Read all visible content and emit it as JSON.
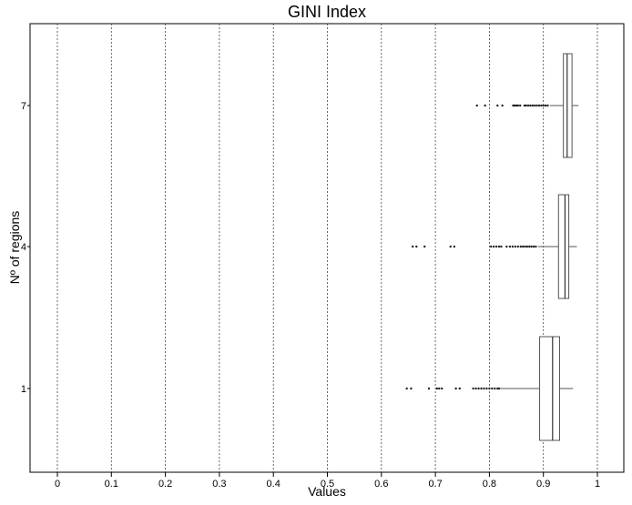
{
  "chart_data": {
    "type": "boxplot",
    "title": "GINI Index",
    "xlabel": "Values",
    "ylabel": "Nº of regions",
    "xlim": [
      -0.05,
      1.05
    ],
    "x_ticks": [
      0,
      0.1,
      0.2,
      0.3,
      0.4,
      0.5,
      0.6,
      0.7,
      0.8,
      0.9,
      1
    ],
    "x_tick_labels": [
      "0",
      "0.1",
      "0.2",
      "0.3",
      "0.4",
      "0.5",
      "0.6",
      "0.7",
      "0.8",
      "0.9",
      "1"
    ],
    "grid": "vertical dotted",
    "categories": [
      "1",
      "4",
      "7"
    ],
    "boxes": [
      {
        "category": "1",
        "min": 0.82,
        "q1": 0.893,
        "median": 0.917,
        "q3": 0.93,
        "max": 0.955,
        "outliers": [
          0.647,
          0.655,
          0.688,
          0.703,
          0.707,
          0.712,
          0.738,
          0.745,
          0.77,
          0.775,
          0.78,
          0.785,
          0.79,
          0.795,
          0.8,
          0.805,
          0.81,
          0.815,
          0.818
        ]
      },
      {
        "category": "4",
        "min": 0.89,
        "q1": 0.928,
        "median": 0.94,
        "q3": 0.947,
        "max": 0.962,
        "outliers": [
          0.658,
          0.665,
          0.68,
          0.728,
          0.735,
          0.803,
          0.808,
          0.813,
          0.818,
          0.822,
          0.832,
          0.838,
          0.843,
          0.848,
          0.853,
          0.858,
          0.862,
          0.866,
          0.87,
          0.874,
          0.878,
          0.882,
          0.886
        ]
      },
      {
        "category": "7",
        "min": 0.912,
        "q1": 0.937,
        "median": 0.944,
        "q3": 0.953,
        "max": 0.965,
        "outliers": [
          0.777,
          0.792,
          0.815,
          0.824,
          0.844,
          0.847,
          0.85,
          0.853,
          0.857,
          0.865,
          0.868,
          0.872,
          0.876,
          0.88,
          0.884,
          0.888,
          0.892,
          0.896,
          0.9,
          0.904,
          0.908
        ]
      }
    ]
  }
}
